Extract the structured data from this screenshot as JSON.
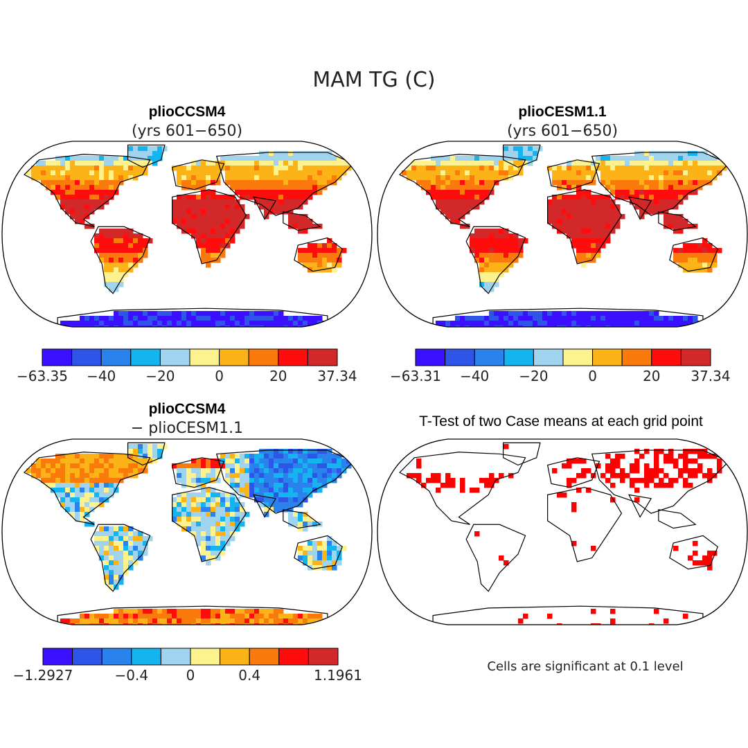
{
  "figure": {
    "title": "MAM TG (C)"
  },
  "panels": [
    {
      "title_line1": "plioCCSM4",
      "title_line2": "(yrs 601−650)",
      "kind": "temperature",
      "colorbar_ticks": [
        "−63.35",
        "−40",
        "−20",
        "0",
        "20",
        "37.34"
      ]
    },
    {
      "title_line1": "plioCESM1.1",
      "title_line2": "(yrs 601−650)",
      "kind": "temperature",
      "colorbar_ticks": [
        "−63.31",
        "−40",
        "−20",
        "0",
        "20",
        "37.34"
      ]
    },
    {
      "title_line1": "plioCCSM4",
      "title_line2": "− plioCESM1.1",
      "kind": "difference",
      "colorbar_ticks": [
        "−1.2927",
        "−0.4",
        "0",
        "0.4",
        "1.1961"
      ]
    },
    {
      "title_line1": "T-Test of two Case means at each grid point",
      "kind": "significance",
      "note": "Cells are significant at 0.1 level"
    }
  ],
  "palette": [
    "#3b0fff",
    "#2f54e8",
    "#2a82ec",
    "#14b4f0",
    "#9fd3ee",
    "#fdf28e",
    "#fbb318",
    "#fa7a0b",
    "#ff0d0d",
    "#d2282a"
  ],
  "significance_color": "#ff0000"
}
